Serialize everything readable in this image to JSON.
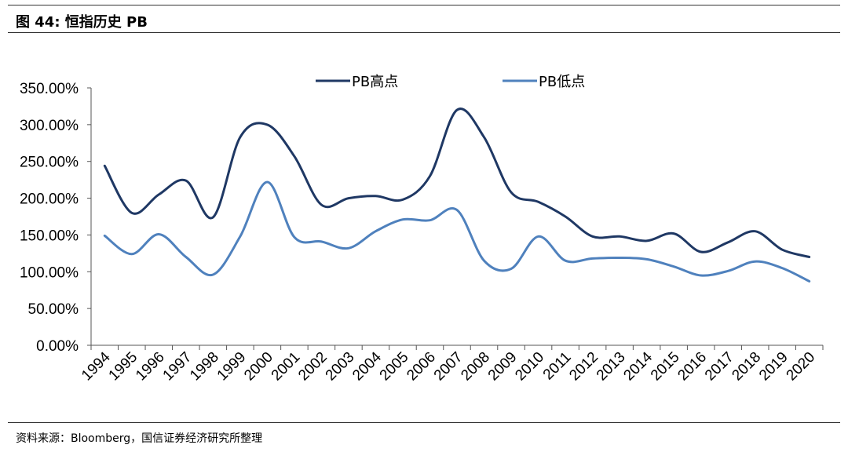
{
  "header": {
    "title": "图 44:  恒指历史 PB"
  },
  "footer": {
    "source": "资料来源：Bloomberg，国信证券经济研究所整理"
  },
  "chart_data": {
    "type": "line",
    "categories": [
      "1994",
      "1995",
      "1996",
      "1997",
      "1998",
      "1999",
      "2000",
      "2001",
      "2002",
      "2003",
      "2004",
      "2005",
      "2006",
      "2007",
      "2008",
      "2009",
      "2010",
      "2011",
      "2012",
      "2013",
      "2014",
      "2015",
      "2016",
      "2017",
      "2018",
      "2019",
      "2020"
    ],
    "y_ticks": [
      "0.00%",
      "50.00%",
      "100.00%",
      "150.00%",
      "200.00%",
      "250.00%",
      "300.00%",
      "350.00%"
    ],
    "ylim": [
      0,
      350
    ],
    "legend_position": "top",
    "series": [
      {
        "name": "PB高点",
        "color": "#1f3864",
        "values": [
          244,
          180,
          205,
          224,
          174,
          283,
          300,
          257,
          191,
          200,
          203,
          198,
          230,
          320,
          283,
          208,
          195,
          175,
          148,
          148,
          142,
          152,
          127,
          140,
          155,
          130,
          120
        ]
      },
      {
        "name": "PB低点",
        "color": "#4f81bd",
        "values": [
          149,
          124,
          151,
          120,
          96,
          148,
          222,
          147,
          141,
          132,
          155,
          171,
          170,
          184,
          115,
          104,
          148,
          115,
          118,
          119,
          117,
          107,
          95,
          101,
          114,
          105,
          87
        ]
      }
    ]
  }
}
